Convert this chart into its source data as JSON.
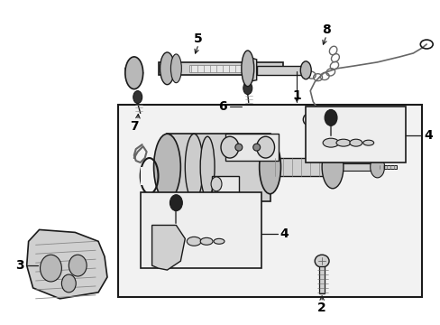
{
  "bg_color": "#ffffff",
  "fig_width": 4.89,
  "fig_height": 3.6,
  "dpi": 100,
  "lc": "#1a1a1a",
  "gray1": "#aaaaaa",
  "gray2": "#cccccc",
  "gray3": "#888888",
  "gray4": "#666666",
  "fill1": "#e8e8e8",
  "fill2": "#d0d0d0",
  "fill3": "#b8b8b8",
  "fill4": "#f2f2f2",
  "font_size": 10
}
